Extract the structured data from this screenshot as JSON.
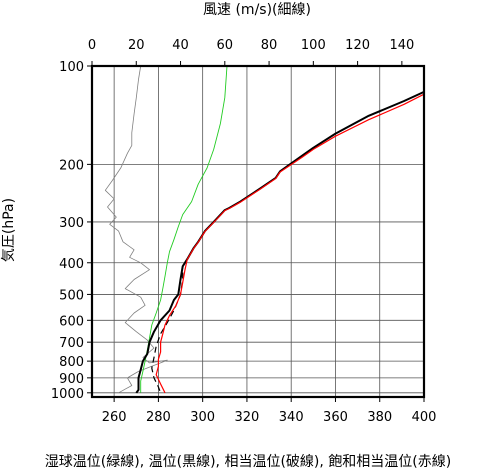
{
  "chart_data": {
    "type": "line",
    "title_top": "風速 (m/s)(細線)",
    "ylabel": "気圧(hPa)",
    "xlabel": "湿球温位(緑線), 温位(黒線), 相当温位(破線), 飽和相当温位(赤線)",
    "y_scale": "log",
    "y_reversed": true,
    "ylim": [
      1030,
      100
    ],
    "y_ticks": [
      100,
      200,
      300,
      400,
      500,
      600,
      700,
      800,
      900,
      1000
    ],
    "x_bottom": {
      "lim": [
        250,
        400
      ],
      "ticks": [
        260,
        280,
        300,
        320,
        340,
        360,
        380,
        400
      ]
    },
    "x_top": {
      "lim": [
        0,
        150
      ],
      "ticks": [
        0,
        20,
        40,
        60,
        80,
        100,
        120,
        140
      ]
    },
    "grid": true,
    "series": [
      {
        "name": "風速",
        "axis": "top",
        "color": "#808080",
        "points": [
          [
            22,
            100
          ],
          [
            21,
            110
          ],
          [
            20,
            125
          ],
          [
            19,
            140
          ],
          [
            18,
            160
          ],
          [
            18,
            175
          ],
          [
            16,
            185
          ],
          [
            13,
            205
          ],
          [
            9,
            225
          ],
          [
            6,
            240
          ],
          [
            10,
            255
          ],
          [
            7,
            270
          ],
          [
            11,
            290
          ],
          [
            8,
            305
          ],
          [
            12,
            320
          ],
          [
            14,
            345
          ],
          [
            19,
            365
          ],
          [
            17,
            385
          ],
          [
            22,
            400
          ],
          [
            26,
            420
          ],
          [
            19,
            450
          ],
          [
            15,
            480
          ],
          [
            22,
            510
          ],
          [
            24,
            540
          ],
          [
            19,
            570
          ],
          [
            15,
            610
          ],
          [
            20,
            650
          ],
          [
            25,
            690
          ],
          [
            28,
            730
          ],
          [
            23,
            780
          ],
          [
            26,
            810
          ],
          [
            34,
            795
          ],
          [
            21,
            860
          ],
          [
            16,
            900
          ],
          [
            18,
            950
          ],
          [
            12,
            1000
          ]
        ]
      },
      {
        "name": "湿球温位",
        "axis": "bottom",
        "color": "#22cc22",
        "points": [
          [
            311,
            100
          ],
          [
            310,
            125
          ],
          [
            308,
            150
          ],
          [
            305,
            180
          ],
          [
            302,
            205
          ],
          [
            298,
            230
          ],
          [
            295,
            260
          ],
          [
            291,
            285
          ],
          [
            289,
            310
          ],
          [
            287,
            340
          ],
          [
            285,
            370
          ],
          [
            284,
            400
          ],
          [
            283,
            440
          ],
          [
            282,
            480
          ],
          [
            281,
            520
          ],
          [
            279,
            570
          ],
          [
            277,
            620
          ],
          [
            276,
            680
          ],
          [
            275,
            740
          ],
          [
            274,
            800
          ],
          [
            273,
            860
          ],
          [
            272,
            920
          ],
          [
            272,
            980
          ],
          [
            272,
            1000
          ]
        ]
      },
      {
        "name": "温位",
        "axis": "bottom",
        "color": "#000000",
        "points": [
          [
            400,
            120
          ],
          [
            391,
            128
          ],
          [
            375,
            142
          ],
          [
            360,
            161
          ],
          [
            350,
            178
          ],
          [
            345,
            188
          ],
          [
            335,
            210
          ],
          [
            333,
            220
          ],
          [
            326,
            237
          ],
          [
            317,
            260
          ],
          [
            312,
            272
          ],
          [
            310,
            276
          ],
          [
            305,
            300
          ],
          [
            301,
            320
          ],
          [
            298,
            345
          ],
          [
            296,
            360
          ],
          [
            293,
            390
          ],
          [
            291,
            410
          ],
          [
            290,
            450
          ],
          [
            289,
            500
          ],
          [
            287,
            520
          ],
          [
            285,
            560
          ],
          [
            281,
            600
          ],
          [
            278,
            650
          ],
          [
            276,
            700
          ],
          [
            275,
            760
          ],
          [
            273,
            800
          ],
          [
            272,
            850
          ],
          [
            271,
            900
          ],
          [
            271,
            980
          ],
          [
            270,
            1000
          ]
        ]
      },
      {
        "name": "相当温位",
        "axis": "bottom",
        "color": "#000000",
        "dashed": true,
        "points": [
          [
            400,
            120
          ],
          [
            391,
            128
          ],
          [
            375,
            142
          ],
          [
            360,
            161
          ],
          [
            350,
            178
          ],
          [
            345,
            188
          ],
          [
            335,
            210
          ],
          [
            333,
            220
          ],
          [
            326,
            237
          ],
          [
            317,
            260
          ],
          [
            312,
            272
          ],
          [
            310,
            276
          ],
          [
            305,
            300
          ],
          [
            301,
            320
          ],
          [
            298,
            345
          ],
          [
            296,
            360
          ],
          [
            293,
            390
          ],
          [
            291,
            410
          ],
          [
            291,
            450
          ],
          [
            290,
            500
          ],
          [
            289,
            520
          ],
          [
            287,
            560
          ],
          [
            284,
            610
          ],
          [
            281,
            660
          ],
          [
            279,
            720
          ],
          [
            278,
            780
          ],
          [
            277,
            840
          ],
          [
            278,
            900
          ],
          [
            280,
            960
          ],
          [
            281,
            1000
          ]
        ]
      },
      {
        "name": "飽和相当温位",
        "axis": "bottom",
        "color": "#ff0000",
        "points": [
          [
            400,
            122
          ],
          [
            391,
            131
          ],
          [
            375,
            146
          ],
          [
            360,
            164
          ],
          [
            350,
            180
          ],
          [
            345,
            190
          ],
          [
            335,
            211
          ],
          [
            333,
            221
          ],
          [
            326,
            238
          ],
          [
            317,
            261
          ],
          [
            312,
            273
          ],
          [
            310,
            277
          ],
          [
            305,
            301
          ],
          [
            301,
            321
          ],
          [
            298,
            346
          ],
          [
            296,
            361
          ],
          [
            293,
            391
          ],
          [
            292,
            420
          ],
          [
            291,
            460
          ],
          [
            290,
            500
          ],
          [
            288,
            540
          ],
          [
            285,
            580
          ],
          [
            283,
            620
          ],
          [
            282,
            660
          ],
          [
            281,
            700
          ],
          [
            281,
            750
          ],
          [
            280,
            790
          ],
          [
            280,
            830
          ],
          [
            279,
            880
          ],
          [
            281,
            940
          ],
          [
            283,
            1000
          ]
        ]
      }
    ]
  }
}
